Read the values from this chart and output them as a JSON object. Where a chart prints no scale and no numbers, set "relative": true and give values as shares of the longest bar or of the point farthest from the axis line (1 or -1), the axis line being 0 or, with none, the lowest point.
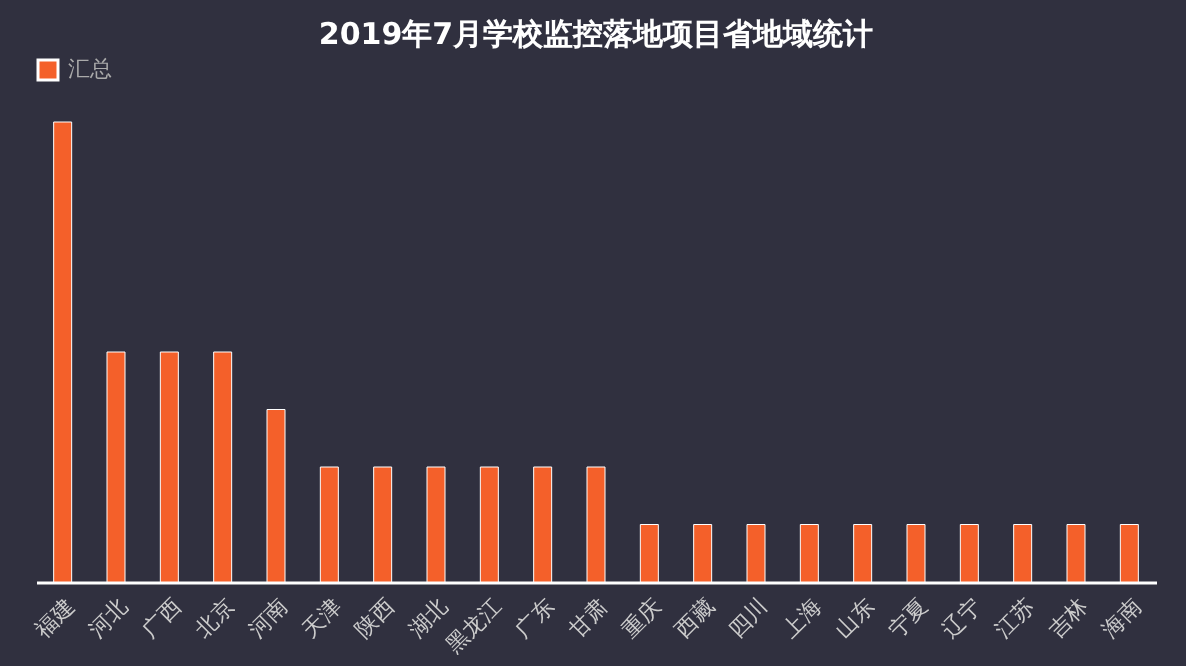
{
  "chart_data": {
    "type": "bar",
    "title": "2019年7月学校监控落地项目省地域统计",
    "categories": [
      "福建",
      "河北",
      "广西",
      "北京",
      "河南",
      "天津",
      "陕西",
      "湖北",
      "黑龙江",
      "广东",
      "甘肃",
      "重庆",
      "西藏",
      "四川",
      "上海",
      "山东",
      "宁夏",
      "辽宁",
      "江苏",
      "吉林",
      "海南"
    ],
    "series": [
      {
        "name": "汇总",
        "color": "#f4602a",
        "values": [
          1,
          0.5,
          0.5,
          0.5,
          0.375,
          0.25,
          0.25,
          0.25,
          0.25,
          0.25,
          0.25,
          0.125,
          0.125,
          0.125,
          0.125,
          0.125,
          0.125,
          0.125,
          0.125,
          0.125,
          0.125
        ]
      }
    ],
    "relative": true,
    "legend": "top",
    "grid": false
  }
}
